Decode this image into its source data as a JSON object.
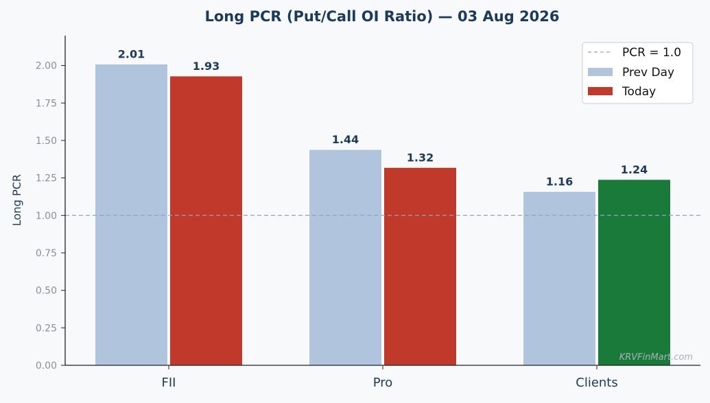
{
  "chart_data": {
    "type": "bar",
    "title": "Long PCR (Put/Call OI Ratio) — 03 Aug 2026",
    "xlabel": "",
    "ylabel": "Long PCR",
    "ylim": [
      0,
      2.1
    ],
    "yticks": [
      "0.00",
      "0.25",
      "0.50",
      "0.75",
      "1.00",
      "1.25",
      "1.50",
      "1.75",
      "2.00"
    ],
    "categories": [
      "FII",
      "Pro",
      "Clients"
    ],
    "series": [
      {
        "name": "Prev Day",
        "values": [
          2.01,
          1.44,
          1.16
        ],
        "labels": [
          "2.01",
          "1.44",
          "1.16"
        ],
        "colors": [
          "#b0c4de",
          "#b0c4de",
          "#b0c4de"
        ]
      },
      {
        "name": "Today",
        "values": [
          1.93,
          1.32,
          1.24
        ],
        "labels": [
          "1.93",
          "1.32",
          "1.24"
        ],
        "colors": [
          "#c0392b",
          "#c0392b",
          "#1a7a3a"
        ]
      }
    ],
    "reference_line": {
      "label": "PCR = 1.0",
      "value": 1.0,
      "color": "#8ea3bd"
    },
    "legend": {
      "position": "top-right",
      "items": [
        "PCR = 1.0",
        "Prev Day",
        "Today"
      ]
    },
    "grid": false,
    "watermark": "KRVFinMart.com"
  }
}
